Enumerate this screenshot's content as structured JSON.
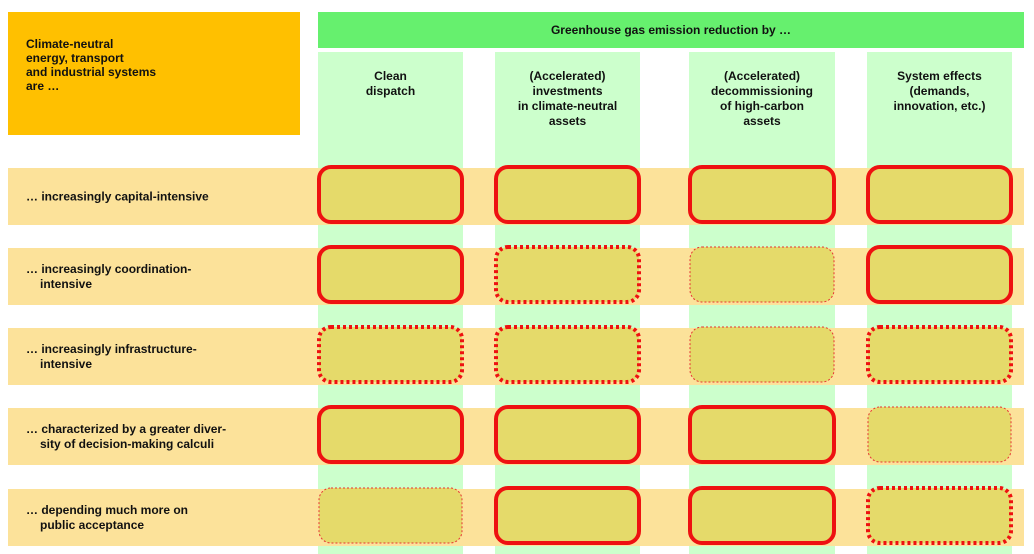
{
  "corner": {
    "lines": [
      "Climate-neutral",
      "energy, transport",
      "and industrial systems",
      "are …"
    ]
  },
  "header": {
    "title": "Greenhouse gas emission reduction by …"
  },
  "columns": [
    {
      "lines": [
        "Clean",
        "dispatch"
      ]
    },
    {
      "lines": [
        "(Accelerated)",
        "investments",
        "in climate-neutral",
        "assets"
      ]
    },
    {
      "lines": [
        "(Accelerated)",
        "decommissioning",
        "of high-carbon",
        "assets"
      ]
    },
    {
      "lines": [
        "System effects",
        "(demands,",
        "innovation, etc.)"
      ]
    }
  ],
  "rows": [
    {
      "lines": [
        "… increasingly capital-intensive"
      ]
    },
    {
      "lines": [
        "… increasingly coordination-",
        "intensive"
      ]
    },
    {
      "lines": [
        "… increasingly infrastructure-",
        "intensive"
      ]
    },
    {
      "lines": [
        "… characterized by a greater diver-",
        "sity of decision-making calculi"
      ]
    },
    {
      "lines": [
        "… depending much more on",
        "public acceptance"
      ]
    }
  ]
}
